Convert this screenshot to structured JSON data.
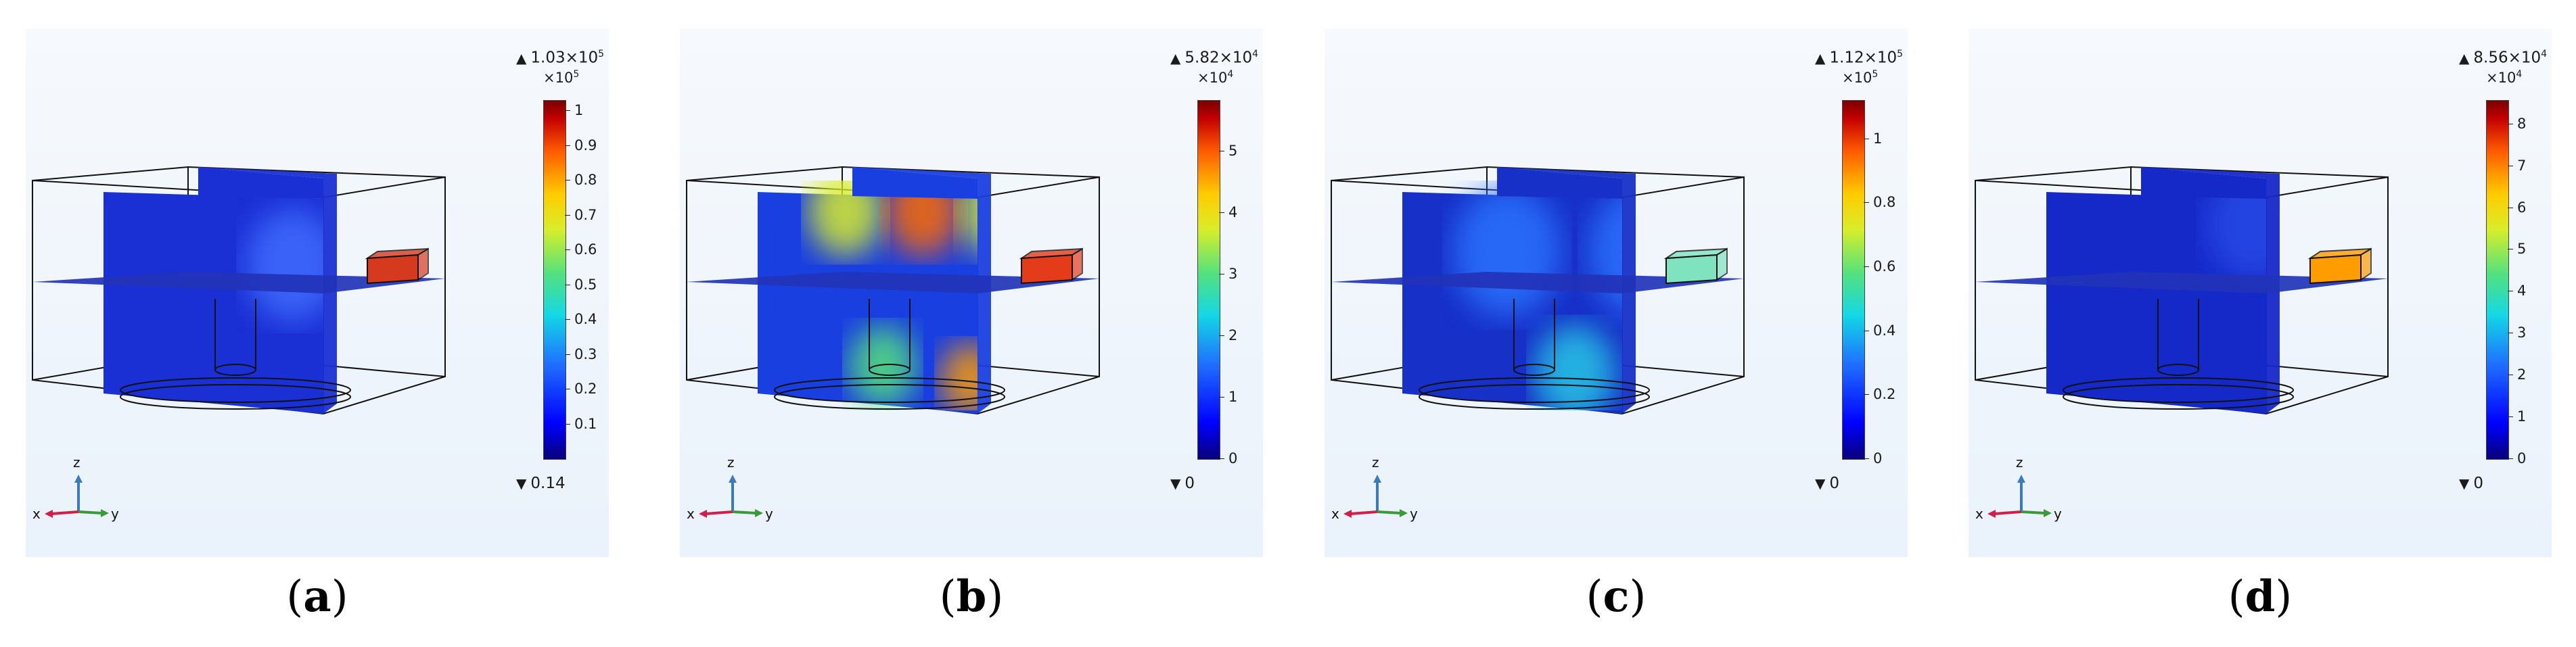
{
  "panels": [
    {
      "label": "a",
      "colorbar": {
        "max": "1.03×10",
        "max_exp": "5",
        "multiplier": "×10",
        "multiplier_exp": "5",
        "min": "0.14",
        "ticks": [
          "1",
          "0.9",
          "0.8",
          "0.7",
          "0.6",
          "0.5",
          "0.4",
          "0.3",
          "0.2",
          "0.1"
        ],
        "tick_values": [
          1,
          0.9,
          0.8,
          0.7,
          0.6,
          0.5,
          0.4,
          0.3,
          0.2,
          0.1
        ],
        "range": [
          0,
          1.03
        ]
      },
      "axes": {
        "x": "x",
        "y": "y",
        "z": "z"
      }
    },
    {
      "label": "b",
      "colorbar": {
        "max": "5.82×10",
        "max_exp": "4",
        "multiplier": "×10",
        "multiplier_exp": "4",
        "min": "0",
        "ticks": [
          "5",
          "4",
          "3",
          "2",
          "1",
          "0"
        ],
        "tick_values": [
          5,
          4,
          3,
          2,
          1,
          0
        ],
        "range": [
          0,
          5.82
        ]
      },
      "axes": {
        "x": "x",
        "y": "y",
        "z": "z"
      }
    },
    {
      "label": "c",
      "colorbar": {
        "max": "1.12×10",
        "max_exp": "5",
        "multiplier": "×10",
        "multiplier_exp": "5",
        "min": "0",
        "ticks": [
          "1",
          "0.8",
          "0.6",
          "0.4",
          "0.2",
          "0"
        ],
        "tick_values": [
          1,
          0.8,
          0.6,
          0.4,
          0.2,
          0
        ],
        "range": [
          0,
          1.12
        ]
      },
      "axes": {
        "x": "x",
        "y": "y",
        "z": "z"
      }
    },
    {
      "label": "d",
      "colorbar": {
        "max": "8.56×10",
        "max_exp": "4",
        "multiplier": "×10",
        "multiplier_exp": "4",
        "min": "0",
        "ticks": [
          "8",
          "7",
          "6",
          "5",
          "4",
          "3",
          "2",
          "1",
          "0"
        ],
        "tick_values": [
          8,
          7,
          6,
          5,
          4,
          3,
          2,
          1,
          0
        ],
        "range": [
          0,
          8.56
        ]
      },
      "axes": {
        "x": "x",
        "y": "y",
        "z": "z"
      }
    }
  ],
  "colors": {
    "low": "#0000c8",
    "mid": "#13d7e6",
    "high": "#c40000",
    "axis_x": "#d0204a",
    "axis_y": "#3a9a3a",
    "axis_z": "#3a7bbf"
  }
}
